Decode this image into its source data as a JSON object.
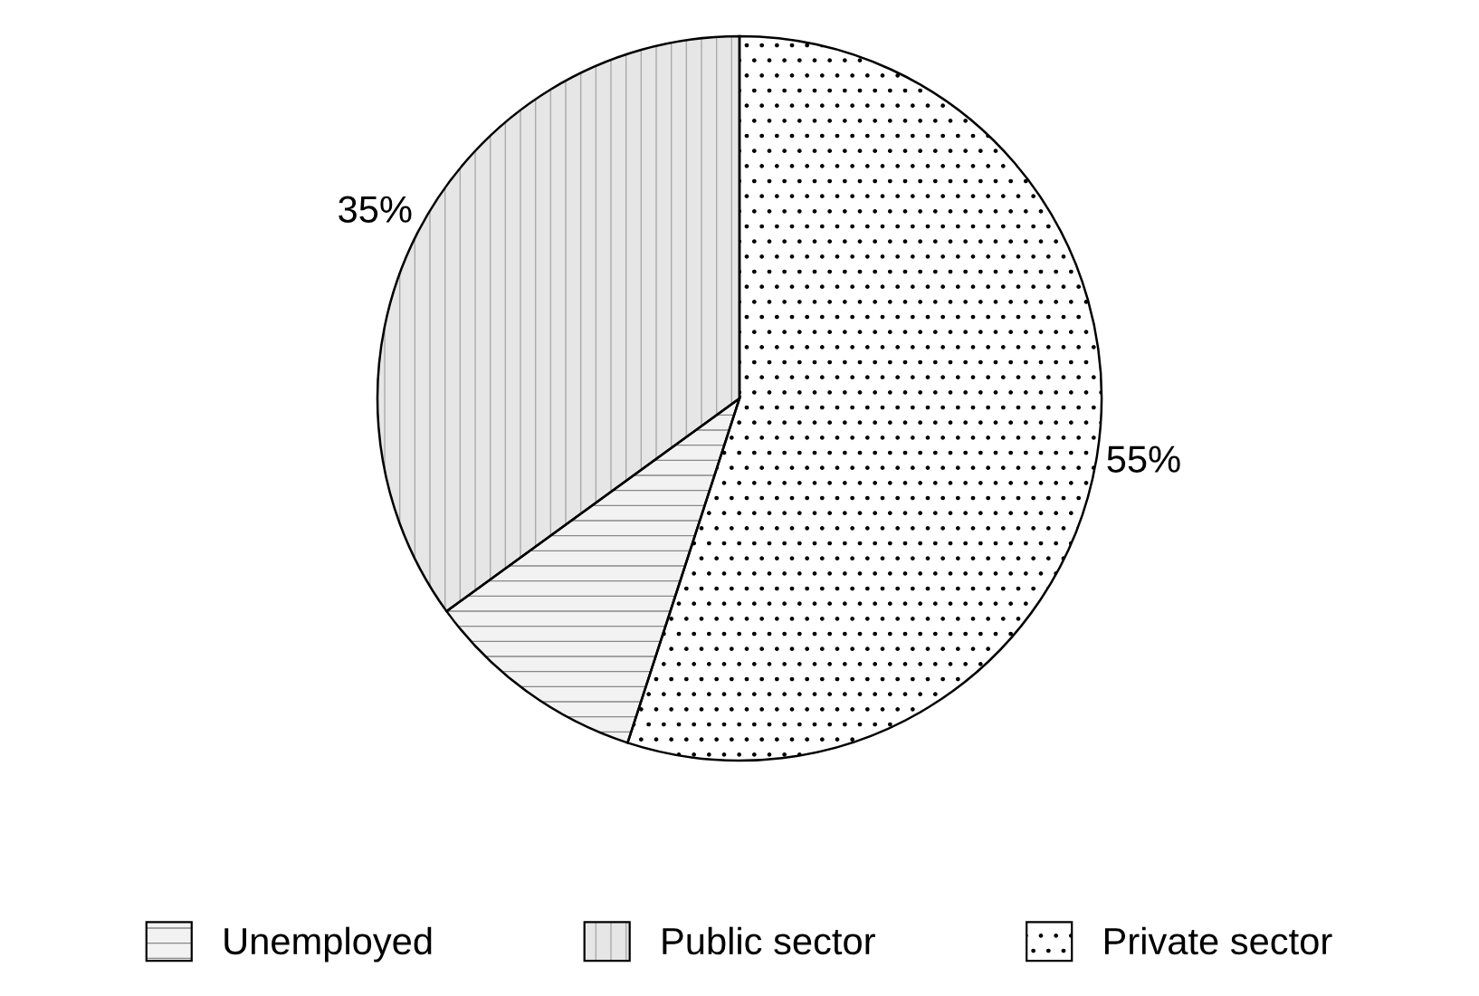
{
  "chart_data": {
    "type": "pie",
    "categories": [
      "Unemployed",
      "Public sector",
      "Private sector"
    ],
    "values": [
      10,
      35,
      55
    ],
    "colors": [
      "#f2f2f2",
      "#e6e6e6",
      "#ffffff"
    ],
    "value_labels": [
      null,
      "35%",
      "55%"
    ],
    "legend": "bottom"
  }
}
